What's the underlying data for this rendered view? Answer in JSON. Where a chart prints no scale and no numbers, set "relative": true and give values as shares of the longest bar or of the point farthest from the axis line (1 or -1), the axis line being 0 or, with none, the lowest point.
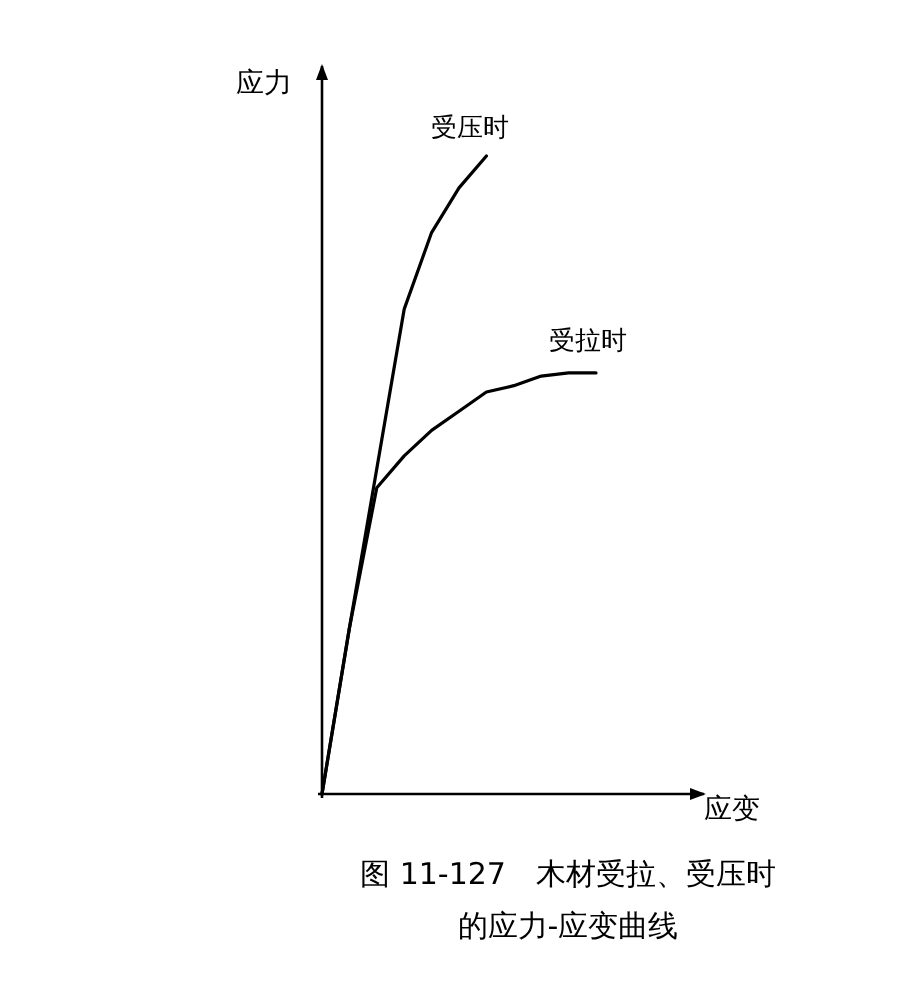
{
  "chart_data": {
    "type": "line",
    "relative": true,
    "title": "图 11-127　木材受拉、受压时的应力-应变曲线",
    "xlabel": "应变",
    "ylabel": "应力",
    "marker": "none",
    "line_style": "solid",
    "categories": [
      null,
      null,
      null,
      null,
      null,
      null,
      null,
      null,
      null,
      null,
      null
    ],
    "series": [
      {
        "name": "受压时",
        "color": "#000000",
        "values": [
          0,
          0.26,
          0.51,
          0.76,
          0.88,
          0.95,
          1,
          null,
          null,
          null,
          null
        ]
      },
      {
        "name": "受拉时",
        "color": "#000000",
        "values": [
          0,
          0.26,
          0.48,
          0.53,
          0.57,
          0.6,
          0.63,
          0.64,
          0.655,
          0.66,
          0.66
        ]
      }
    ]
  }
}
